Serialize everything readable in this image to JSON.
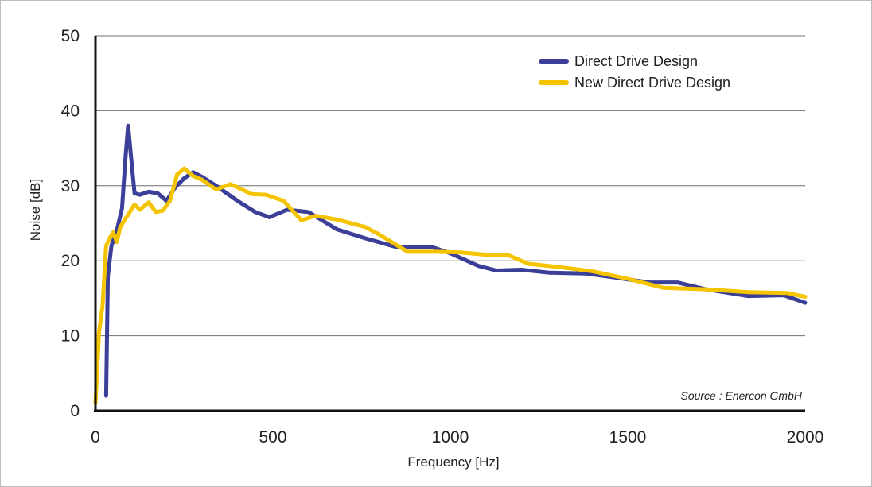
{
  "chart_data": {
    "type": "line",
    "xlabel": "Frequency [Hz]",
    "ylabel": "Noise [dB]",
    "xlim": [
      0,
      2000
    ],
    "ylim": [
      0,
      50
    ],
    "xticks": [
      "0",
      "500",
      "1000",
      "1500",
      "2000"
    ],
    "yticks": [
      "0",
      "10",
      "20",
      "30",
      "40",
      "50"
    ],
    "grid": "horizontal",
    "legend_position": "top-right",
    "annotation": "Source : Enercon GmbH",
    "series": [
      {
        "name": "Direct Drive Design",
        "color": "#3b3f98",
        "x": [
          30,
          35,
          45,
          60,
          75,
          85,
          92,
          100,
          110,
          125,
          150,
          175,
          200,
          225,
          250,
          275,
          300,
          340,
          400,
          450,
          490,
          540,
          600,
          680,
          760,
          850,
          950,
          1000,
          1080,
          1130,
          1200,
          1280,
          1380,
          1460,
          1560,
          1640,
          1720,
          1840,
          1940,
          2000
        ],
        "y": [
          2,
          18,
          22,
          24,
          27,
          34,
          38,
          34,
          29,
          28.8,
          29.2,
          29,
          28,
          29.8,
          31,
          31.8,
          31.2,
          30,
          28,
          26.5,
          25.8,
          26.8,
          26.5,
          24.2,
          23,
          21.8,
          21.8,
          21,
          19.3,
          18.7,
          18.8,
          18.4,
          18.3,
          17.8,
          17.1,
          17.1,
          16.2,
          15.3,
          15.4,
          14.4
        ]
      },
      {
        "name": "New Direct Drive Design",
        "color": "#f5c400",
        "x": [
          0,
          10,
          20,
          30,
          40,
          50,
          60,
          70,
          90,
          110,
          125,
          150,
          170,
          190,
          210,
          230,
          250,
          275,
          300,
          340,
          380,
          400,
          440,
          480,
          530,
          580,
          620,
          680,
          760,
          800,
          880,
          960,
          1030,
          1100,
          1160,
          1220,
          1300,
          1400,
          1500,
          1600,
          1720,
          1840,
          1950,
          2000
        ],
        "y": [
          1,
          10.5,
          14,
          22,
          23,
          23.8,
          22.5,
          24.5,
          26,
          27.5,
          26.8,
          27.8,
          26.5,
          26.7,
          28,
          31.5,
          32.3,
          31.3,
          30.8,
          29.5,
          30.2,
          29.8,
          28.9,
          28.8,
          28,
          25.4,
          26,
          25.5,
          24.5,
          23.5,
          21.2,
          21.2,
          21.1,
          20.8,
          20.8,
          19.6,
          19.2,
          18.6,
          17.6,
          16.4,
          16.2,
          15.8,
          15.7,
          15.2
        ]
      }
    ]
  }
}
